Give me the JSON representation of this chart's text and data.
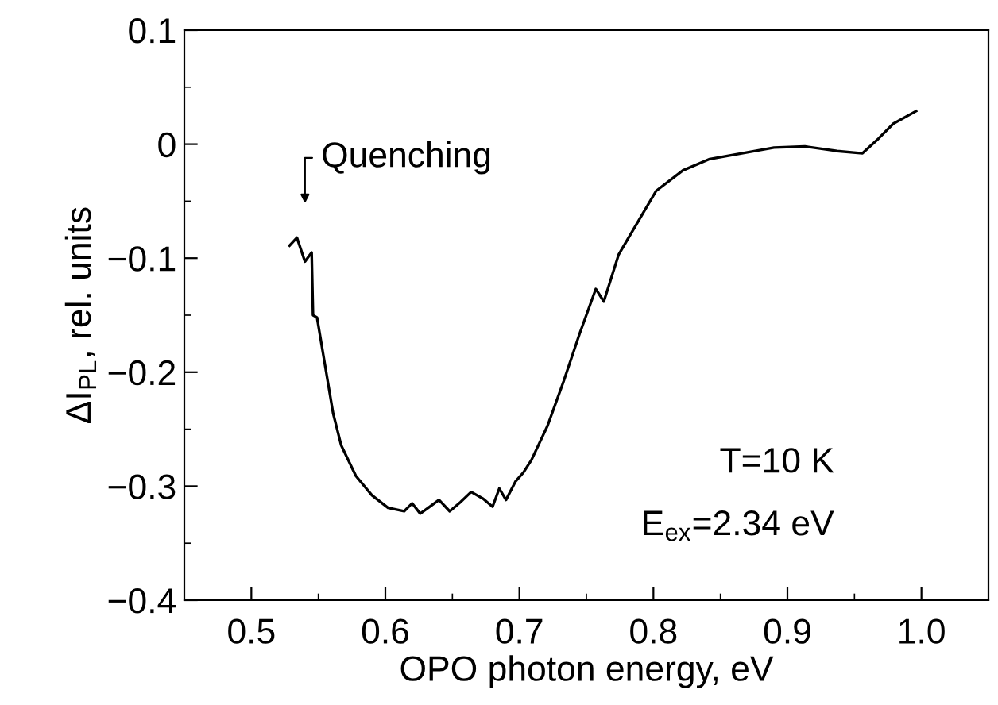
{
  "chart_data": {
    "type": "line",
    "xlabel": "OPO photon energy, eV",
    "ylabel": "ΔI$_{PL}$, rel. units",
    "x": [
      0.5285,
      0.534,
      0.54,
      0.545,
      0.546,
      0.549,
      0.555,
      0.561,
      0.567,
      0.578,
      0.59,
      0.602,
      0.614,
      0.62,
      0.626,
      0.632,
      0.64,
      0.648,
      0.656,
      0.664,
      0.673,
      0.68,
      0.685,
      0.69,
      0.697,
      0.703,
      0.709,
      0.721,
      0.733,
      0.745,
      0.757,
      0.763,
      0.774,
      0.786,
      0.802,
      0.822,
      0.842,
      0.861,
      0.89,
      0.913,
      0.937,
      0.956,
      0.968,
      0.979,
      0.996
    ],
    "series": [
      {
        "color": "#000000",
        "values": [
          -0.089,
          -0.082,
          -0.103,
          -0.095,
          -0.15,
          -0.152,
          -0.194,
          -0.236,
          -0.264,
          -0.291,
          -0.308,
          -0.319,
          -0.322,
          -0.315,
          -0.324,
          -0.319,
          -0.312,
          -0.322,
          -0.314,
          -0.305,
          -0.311,
          -0.318,
          -0.302,
          -0.312,
          -0.296,
          -0.288,
          -0.277,
          -0.247,
          -0.208,
          -0.166,
          -0.127,
          -0.138,
          -0.097,
          -0.073,
          -0.041,
          -0.023,
          -0.013,
          -0.009,
          -0.003,
          -0.002,
          -0.006,
          -0.008,
          0.005,
          0.018,
          0.029
        ]
      }
    ],
    "xlim": [
      0.45,
      1.05
    ],
    "xticks": [
      0.5,
      0.6,
      0.7,
      0.8,
      0.9,
      {
        "value": 1.0,
        "label": "1.0"
      },
      {
        "value": 0.55,
        "label": null
      },
      {
        "value": 0.65,
        "label": null
      },
      {
        "value": 0.75,
        "label": null
      },
      {
        "value": 0.85,
        "label": null
      },
      {
        "value": 0.95,
        "label": null
      }
    ],
    "ylim": [
      -0.4,
      0.1
    ],
    "yticks": [
      {
        "value": -0.4,
        "label": "−0.4"
      },
      {
        "value": -0.3,
        "label": "−0.3"
      },
      {
        "value": -0.2,
        "label": "−0.2"
      },
      {
        "value": -0.1,
        "label": "−0.1"
      },
      0,
      0.1,
      {
        "value": -0.35,
        "label": null
      },
      {
        "value": -0.25,
        "label": null
      },
      {
        "value": -0.15,
        "label": null
      },
      {
        "value": -0.05,
        "label": null
      },
      {
        "value": 0.05,
        "label": null
      }
    ],
    "grid": false,
    "marker": "none",
    "line_style": "solid",
    "annotations": [
      "Quenching",
      "T=10 K",
      "E$_{ex}$=2.34 eV"
    ]
  }
}
